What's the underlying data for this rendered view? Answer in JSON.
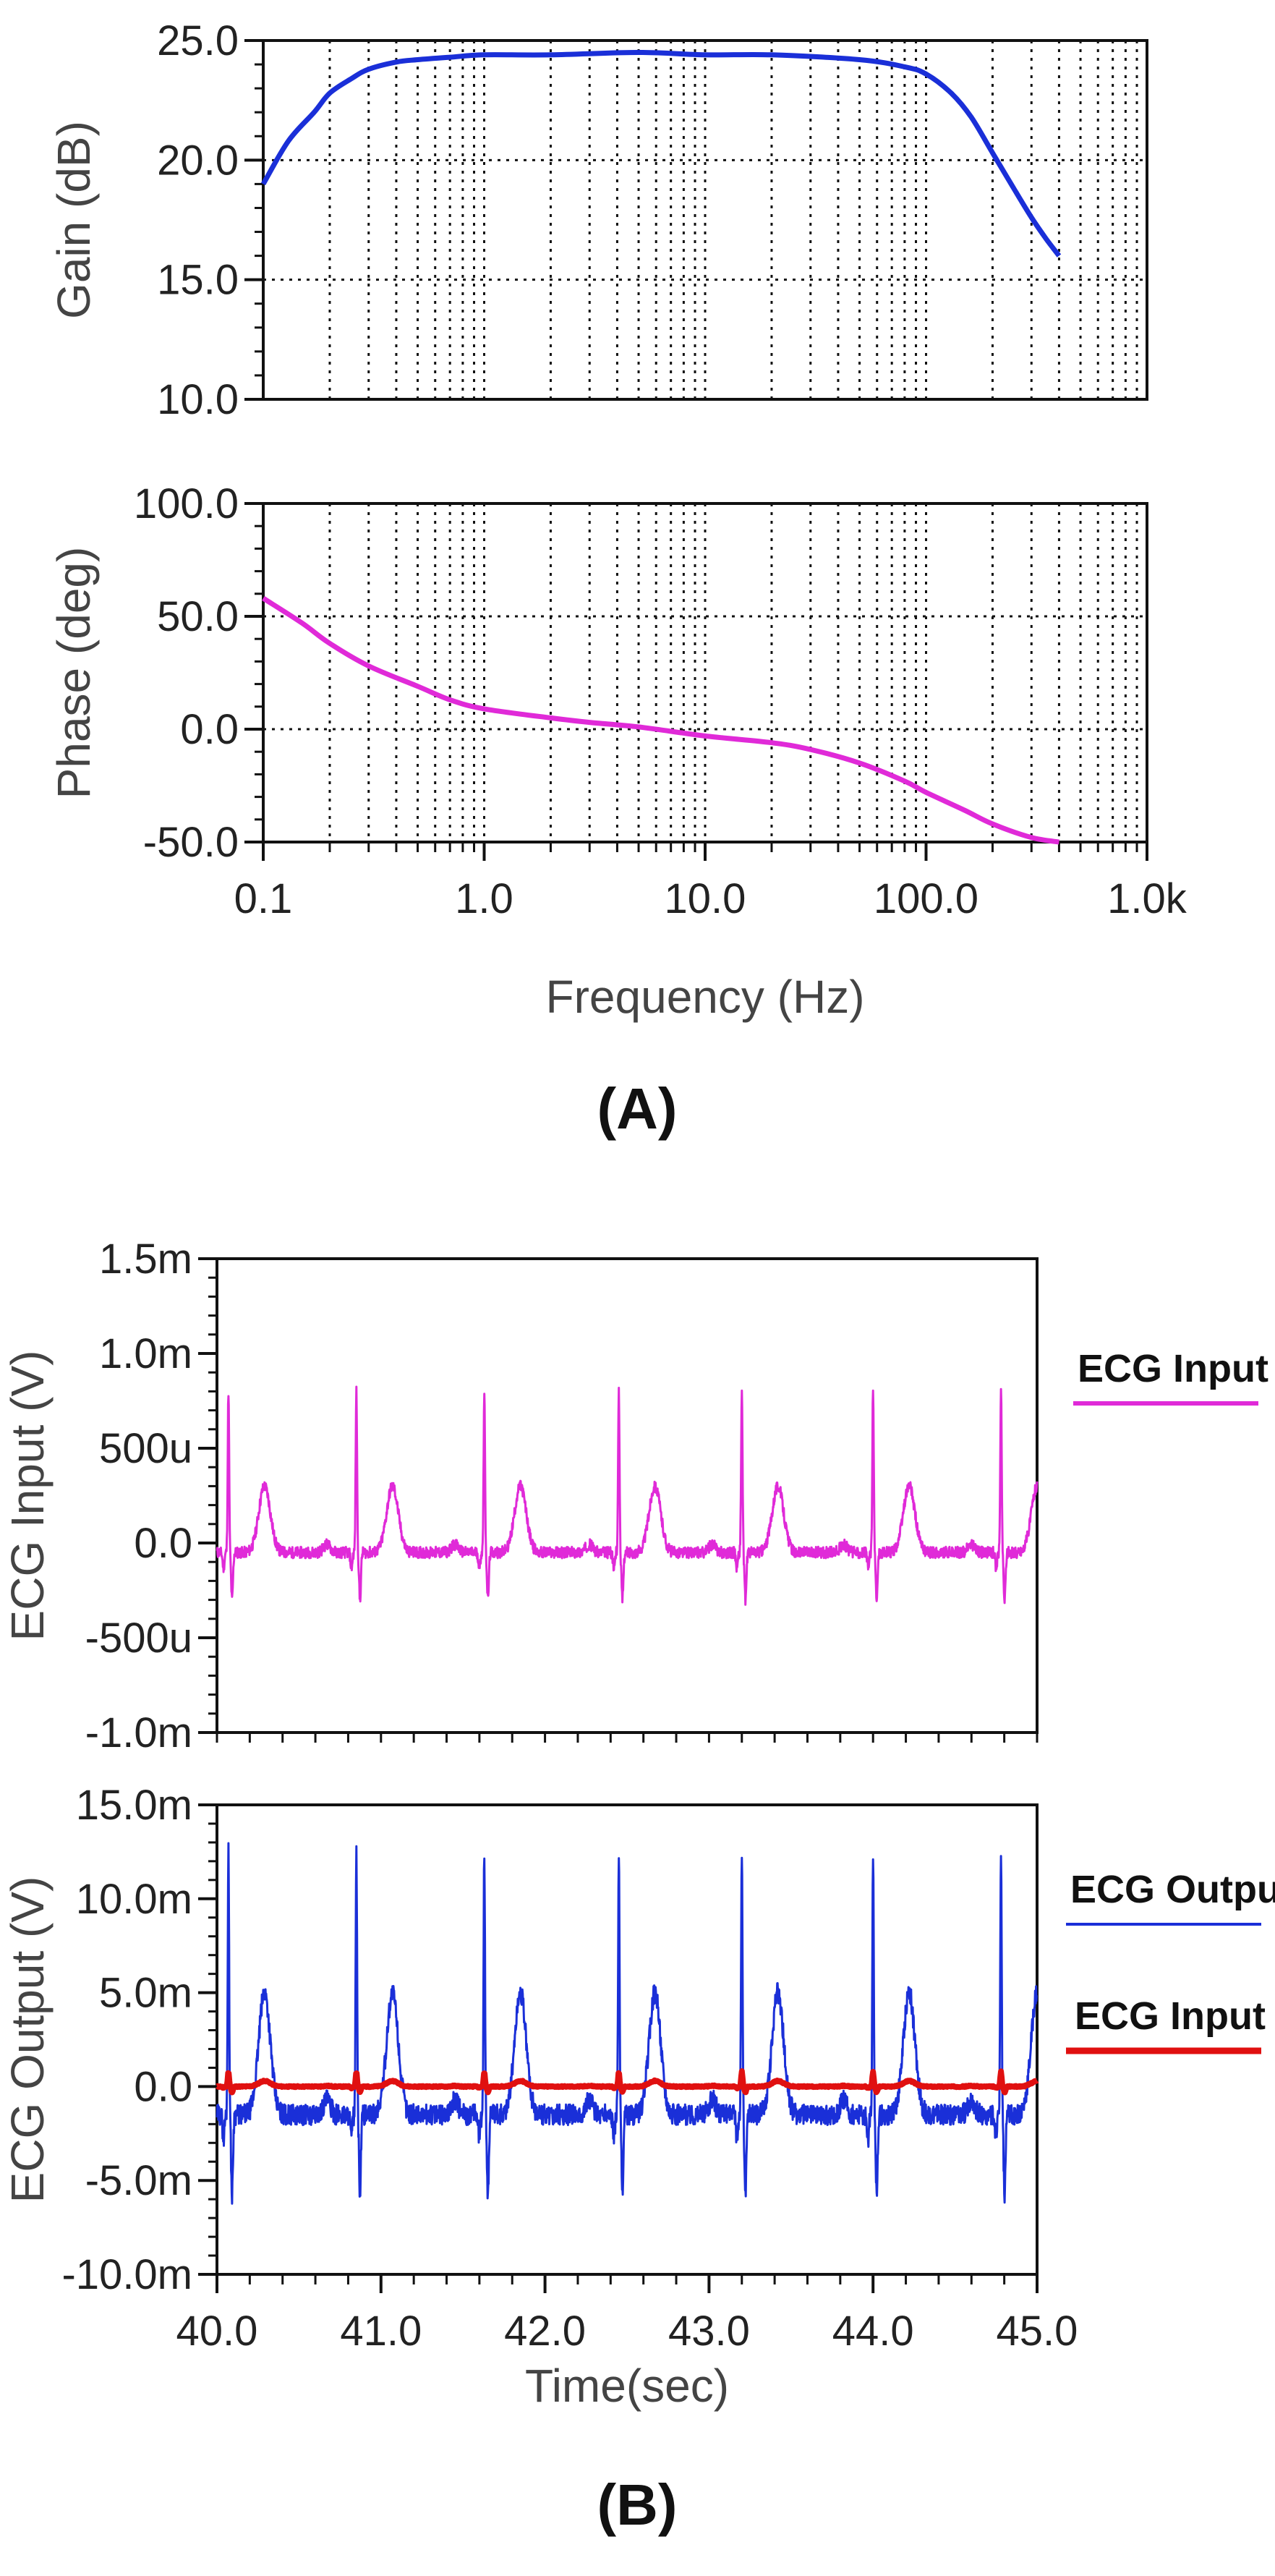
{
  "chart_data": [
    {
      "id": "gain",
      "type": "line",
      "panel": "A",
      "xscale": "log",
      "xlim": [
        0.1,
        1000
      ],
      "ylim": [
        10,
        25
      ],
      "xlabel": "",
      "ylabel": "Gain (dB)",
      "y_ticks": [
        "10.0",
        "15.0",
        "20.0",
        "25.0"
      ],
      "y_tick_values": [
        10,
        15,
        20,
        25
      ],
      "grid": true,
      "series": [
        {
          "name": "Gain",
          "color": "#1a2fd8",
          "x": [
            0.1,
            0.13,
            0.17,
            0.2,
            0.25,
            0.3,
            0.4,
            0.5,
            0.7,
            1,
            2,
            5,
            10,
            20,
            50,
            80,
            100,
            130,
            160,
            200,
            250,
            300,
            350,
            400
          ],
          "y": [
            19,
            20.8,
            22.0,
            22.8,
            23.4,
            23.8,
            24.1,
            24.2,
            24.3,
            24.4,
            24.4,
            24.5,
            24.4,
            24.4,
            24.2,
            23.9,
            23.6,
            22.8,
            21.8,
            20.3,
            18.8,
            17.6,
            16.7,
            16.0
          ]
        }
      ]
    },
    {
      "id": "phase",
      "type": "line",
      "panel": "A",
      "xscale": "log",
      "xlim": [
        0.1,
        1000
      ],
      "ylim": [
        -50,
        100
      ],
      "xlabel": "Frequency (Hz)",
      "ylabel": "Phase (deg)",
      "x_ticks": [
        "0.1",
        "1.0",
        "10.0",
        "100.0",
        "1.0k"
      ],
      "x_tick_values": [
        0.1,
        1,
        10,
        100,
        1000
      ],
      "y_ticks": [
        "-50.0",
        "0.0",
        "50.0",
        "100.0"
      ],
      "y_tick_values": [
        -50,
        0,
        50,
        100
      ],
      "grid": true,
      "series": [
        {
          "name": "Phase",
          "color": "#e02ad8",
          "x": [
            0.1,
            0.15,
            0.2,
            0.3,
            0.5,
            0.7,
            1,
            2,
            3,
            5,
            10,
            20,
            30,
            50,
            80,
            100,
            150,
            200,
            300,
            400
          ],
          "y": [
            58,
            47,
            38,
            28,
            19,
            13,
            9,
            5,
            3,
            1,
            -3,
            -6,
            -9,
            -15,
            -23,
            -28,
            -36,
            -42,
            -48,
            -50
          ]
        }
      ]
    },
    {
      "id": "ecg-input",
      "type": "line",
      "panel": "B",
      "xlim": [
        40,
        45
      ],
      "ylim": [
        -1.0,
        1.5
      ],
      "y_units": "mV",
      "xlabel": "",
      "ylabel": "ECG Input (V)",
      "y_ticks": [
        "-1.0m",
        "-500u",
        "0.0",
        "500u",
        "1.0m",
        "1.5m"
      ],
      "y_tick_values": [
        -1.0,
        -0.5,
        0,
        0.5,
        1.0,
        1.5
      ],
      "grid": false,
      "beat_times": [
        40.07,
        40.85,
        41.63,
        42.45,
        43.2,
        44.0,
        44.78
      ],
      "series": [
        {
          "name": "ECG Input",
          "color": "#e02ad8",
          "baseline": -0.05,
          "r_peak": 0.8,
          "s_trough": -0.3,
          "t_wave": 0.3
        }
      ]
    },
    {
      "id": "ecg-output",
      "type": "line",
      "panel": "B",
      "xlim": [
        40,
        45
      ],
      "ylim": [
        -10,
        15
      ],
      "y_units": "mV",
      "xlabel": "Time(sec)",
      "ylabel": "ECG Output (V)",
      "x_ticks": [
        "40.0",
        "41.0",
        "42.0",
        "43.0",
        "44.0",
        "45.0"
      ],
      "x_tick_values": [
        40,
        41,
        42,
        43,
        44,
        45
      ],
      "y_ticks": [
        "-10.0m",
        "-5.0m",
        "0.0",
        "5.0m",
        "10.0m",
        "15.0m"
      ],
      "y_tick_values": [
        -10,
        -5,
        0,
        5,
        10,
        15
      ],
      "grid": false,
      "beat_times": [
        40.07,
        40.85,
        41.63,
        42.45,
        43.2,
        44.0,
        44.78
      ],
      "series": [
        {
          "name": "ECG Output",
          "color": "#1a2fd8",
          "baseline": -1.5,
          "r_peak": 12.5,
          "s_trough": -5.8,
          "t_wave": 5.0
        },
        {
          "name": "ECG Input",
          "color": "#e01010",
          "baseline": 0.0,
          "r_peak": 0.8,
          "s_trough": -0.3,
          "t_wave": 0.3
        }
      ]
    }
  ],
  "labels": {
    "panel_a": "(A)",
    "panel_b": "(B)",
    "legend_ecg_input_top": "ECG Input",
    "legend_ecg_output": "ECG Output",
    "legend_ecg_input_bottom": "ECG Input"
  }
}
